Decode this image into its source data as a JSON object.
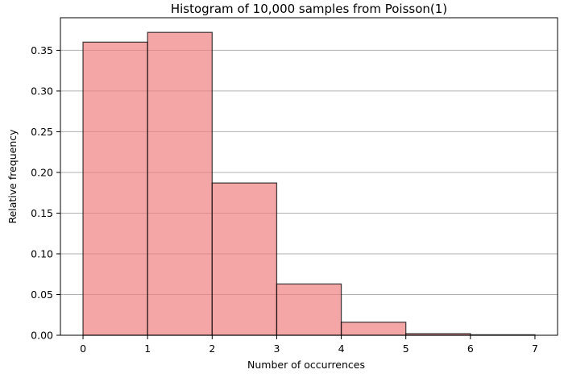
{
  "chart_data": {
    "type": "bar",
    "title": "Histogram of 10,000 samples from Poisson(1)",
    "xlabel": "Number of occurrences",
    "ylabel": "Relative frequency",
    "bins": [
      {
        "left": 0,
        "right": 1,
        "value": 0.36
      },
      {
        "left": 1,
        "right": 2,
        "value": 0.372
      },
      {
        "left": 2,
        "right": 3,
        "value": 0.187
      },
      {
        "left": 3,
        "right": 4,
        "value": 0.063
      },
      {
        "left": 4,
        "right": 5,
        "value": 0.016
      },
      {
        "left": 5,
        "right": 6,
        "value": 0.002
      },
      {
        "left": 6,
        "right": 7,
        "value": 0.0006
      }
    ],
    "xlim": [
      -0.35,
      7.35
    ],
    "ylim": [
      0,
      0.39
    ],
    "xticks": [
      0,
      1,
      2,
      3,
      4,
      5,
      6,
      7
    ],
    "xtick_labels": [
      "0",
      "1",
      "2",
      "3",
      "4",
      "5",
      "6",
      "7"
    ],
    "yticks": [
      0.0,
      0.05,
      0.1,
      0.15,
      0.2,
      0.25,
      0.3,
      0.35
    ],
    "ytick_labels": [
      "0.00",
      "0.05",
      "0.10",
      "0.15",
      "0.20",
      "0.25",
      "0.30",
      "0.35"
    ],
    "grid": "y-axis only",
    "bar_color": "#f08080",
    "bar_edge_color": "#000000",
    "grid_color": "#b0b0b0"
  }
}
